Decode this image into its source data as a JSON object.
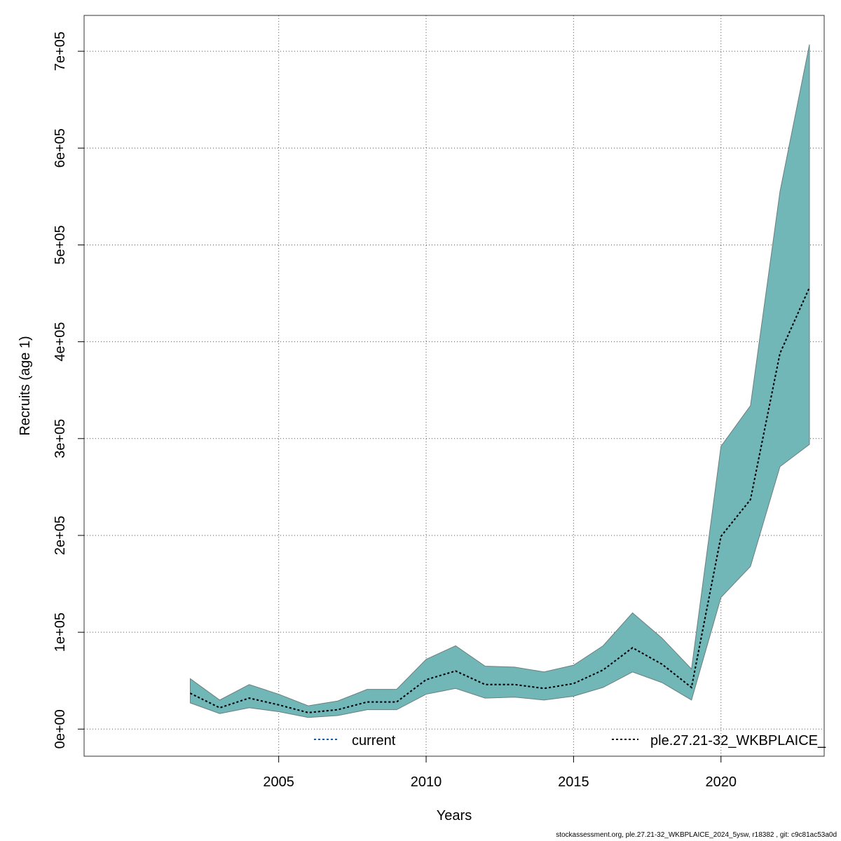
{
  "chart_data": {
    "type": "area",
    "xlabel": "Years",
    "ylabel": "Recruits (age 1)",
    "xlim": [
      1998.4,
      2023.5
    ],
    "ylim": [
      -28000,
      737000
    ],
    "x_ticks": [
      2005,
      2010,
      2015,
      2020
    ],
    "y_ticks": [
      {
        "value": 0,
        "label": "0e+00"
      },
      {
        "value": 100000,
        "label": "1e+05"
      },
      {
        "value": 200000,
        "label": "2e+05"
      },
      {
        "value": 300000,
        "label": "3e+05"
      },
      {
        "value": 400000,
        "label": "4e+05"
      },
      {
        "value": 500000,
        "label": "5e+05"
      },
      {
        "value": 600000,
        "label": "6e+05"
      },
      {
        "value": 700000,
        "label": "7e+05"
      }
    ],
    "grid": true,
    "years": [
      2002,
      2003,
      2004,
      2005,
      2006,
      2007,
      2008,
      2009,
      2010,
      2011,
      2012,
      2013,
      2014,
      2015,
      2016,
      2017,
      2018,
      2019,
      2020,
      2021,
      2022,
      2023
    ],
    "series": [
      {
        "name": "current",
        "color": "#1f5b9a",
        "values": [
          37000,
          22000,
          32000,
          25000,
          17000,
          20000,
          28000,
          28000,
          51000,
          60000,
          46000,
          46000,
          42000,
          47000,
          61000,
          84000,
          67000,
          43000,
          199000,
          237000,
          388000,
          456000
        ]
      },
      {
        "name": "ple.27.21-32_WKBPLAICE_",
        "color": "#000000",
        "values": [
          37000,
          22000,
          32000,
          25000,
          17000,
          20000,
          28000,
          28000,
          51000,
          60000,
          46000,
          46000,
          42000,
          47000,
          61000,
          84000,
          67000,
          43000,
          199000,
          237000,
          388000,
          456000
        ]
      }
    ],
    "band": {
      "color": "#72b7b8",
      "edge_color": "#6a7f7f",
      "upper": [
        52000,
        30000,
        46000,
        36000,
        24000,
        29000,
        41000,
        41000,
        72000,
        86000,
        65000,
        64000,
        59000,
        66000,
        86000,
        120000,
        94000,
        62000,
        292000,
        334000,
        555000,
        707000
      ],
      "lower": [
        27000,
        16000,
        22000,
        18000,
        12000,
        14000,
        20000,
        20000,
        36000,
        42000,
        32000,
        33000,
        30000,
        34000,
        43000,
        59000,
        48000,
        30000,
        136000,
        168000,
        271000,
        294000
      ]
    },
    "legend": "bottom"
  },
  "footer": "stockassessment.org, ple.27.21-32_WKBPLAICE_2024_5ysw, r18382 , git: c9c81ac53a0d"
}
